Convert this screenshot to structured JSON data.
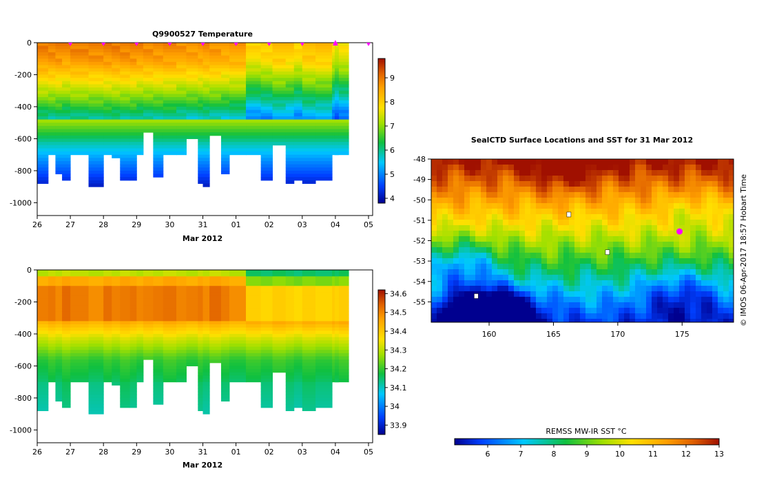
{
  "credit": "© IMOS 06-Apr-2017 18:57 Hobart Time",
  "chart_data": [
    {
      "type": "heatmap",
      "title": "Q9900527  Temperature",
      "xlabel": "Mar 2012",
      "ylabel": "",
      "x_ticks": [
        "26",
        "27",
        "28",
        "29",
        "30",
        "31",
        "01",
        "02",
        "03",
        "04",
        "05"
      ],
      "y_ticks": [
        0,
        -200,
        -400,
        -600,
        -800,
        -1000
      ],
      "ylim": [
        -1080,
        0
      ],
      "colorbar": {
        "ticks": [
          4,
          5,
          6,
          7,
          8,
          9
        ],
        "range": [
          3.8,
          9.8
        ],
        "palette": [
          "#00008f",
          "#0050ff",
          "#00c8ff",
          "#10c040",
          "#a0e000",
          "#ffe000",
          "#ffa000",
          "#e06000",
          "#a01000"
        ]
      },
      "profiles": [
        {
          "x": 26.0,
          "max_depth": 880,
          "surface": 9.0
        },
        {
          "x": 26.33,
          "max_depth": 700,
          "surface": 9.0
        },
        {
          "x": 26.55,
          "max_depth": 810,
          "surface": 9.0
        },
        {
          "x": 26.75,
          "max_depth": 860,
          "surface": 8.9
        },
        {
          "x": 27.0,
          "max_depth": 700,
          "surface": 9.0
        },
        {
          "x": 27.55,
          "max_depth": 890,
          "surface": 9.0
        },
        {
          "x": 28.0,
          "max_depth": 700,
          "surface": 9.0
        },
        {
          "x": 28.25,
          "max_depth": 710,
          "surface": 9.0
        },
        {
          "x": 28.5,
          "max_depth": 860,
          "surface": 9.0
        },
        {
          "x": 28.8,
          "max_depth": 850,
          "surface": 9.0
        },
        {
          "x": 29.0,
          "max_depth": 700,
          "surface": 8.9
        },
        {
          "x": 29.2,
          "max_depth": 560,
          "surface": 8.9
        },
        {
          "x": 29.5,
          "max_depth": 840,
          "surface": 8.9
        },
        {
          "x": 29.8,
          "max_depth": 700,
          "surface": 8.9
        },
        {
          "x": 30.2,
          "max_depth": 700,
          "surface": 8.8
        },
        {
          "x": 30.5,
          "max_depth": 590,
          "surface": 8.8
        },
        {
          "x": 30.85,
          "max_depth": 880,
          "surface": 8.8
        },
        {
          "x": 31.0,
          "max_depth": 890,
          "surface": 8.8
        },
        {
          "x": 31.2,
          "max_depth": 580,
          "surface": 8.8
        },
        {
          "x": 31.55,
          "max_depth": 820,
          "surface": 8.7
        },
        {
          "x": 31.8,
          "max_depth": 700,
          "surface": 8.7
        },
        {
          "x": 32.3,
          "max_depth": 700,
          "surface": 8.0
        },
        {
          "x": 32.75,
          "max_depth": 860,
          "surface": 8.1
        },
        {
          "x": 33.1,
          "max_depth": 640,
          "surface": 8.3
        },
        {
          "x": 33.5,
          "max_depth": 880,
          "surface": 8.2
        },
        {
          "x": 33.75,
          "max_depth": 860,
          "surface": 8.0
        },
        {
          "x": 34.0,
          "max_depth": 880,
          "surface": 8.3
        },
        {
          "x": 34.4,
          "max_depth": 860,
          "surface": 8.3
        },
        {
          "x": 34.9,
          "max_depth": 700,
          "surface": 7.8
        }
      ]
    },
    {
      "type": "heatmap",
      "title": "",
      "xlabel": "Mar 2012",
      "ylabel": "",
      "x_ticks": [
        "26",
        "27",
        "28",
        "29",
        "30",
        "31",
        "01",
        "02",
        "03",
        "04",
        "05"
      ],
      "y_ticks": [
        0,
        -200,
        -400,
        -600,
        -800,
        -1000
      ],
      "ylim": [
        -1080,
        0
      ],
      "colorbar": {
        "ticks": [
          33.9,
          34,
          34.1,
          34.2,
          34.3,
          34.4,
          34.5,
          34.6
        ],
        "range": [
          33.85,
          34.62
        ],
        "palette": [
          "#00008f",
          "#0050ff",
          "#00c8ff",
          "#10c040",
          "#a0e000",
          "#ffe000",
          "#ffa000",
          "#e06000",
          "#a01000"
        ]
      }
    },
    {
      "type": "heatmap",
      "title": "SealCTD Surface Locations and SST for 31 Mar 2012",
      "xlabel": "",
      "ylabel": "",
      "x_ticks": [
        "160",
        "165",
        "170",
        "175"
      ],
      "y_ticks": [
        "-48",
        "-49",
        "-50",
        "-51",
        "-52",
        "-53",
        "-54",
        "-55"
      ],
      "xlim": [
        155.5,
        179.0
      ],
      "ylim": [
        -56.0,
        -48.0
      ],
      "current_location": {
        "lon": 174.8,
        "lat": -51.55
      },
      "colorbar": {
        "label": "REMSS MW-IR SST °C",
        "ticks": [
          6,
          7,
          8,
          9,
          10,
          11,
          12,
          13
        ],
        "range": [
          5.0,
          13.0
        ]
      }
    }
  ]
}
